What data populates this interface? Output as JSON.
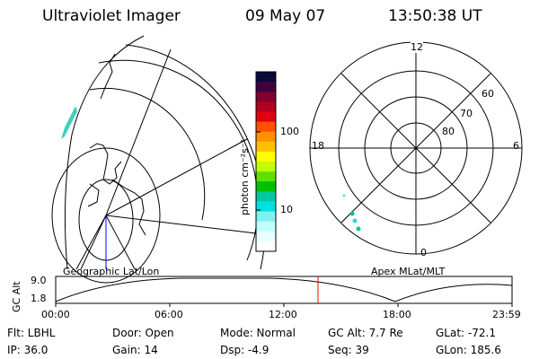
{
  "header": {
    "instrument": "Ultraviolet Imager",
    "date": "09 May 07",
    "time": "13:50:38 UT"
  },
  "colorbar": {
    "unit_label": "photon cm⁻²s⁻¹",
    "ticks": [
      "100",
      "10"
    ],
    "colors": [
      "#0a0a3a",
      "#400040",
      "#800030",
      "#b00020",
      "#e00010",
      "#ff5000",
      "#ff9000",
      "#ffc000",
      "#ffff00",
      "#c0ff00",
      "#60e000",
      "#00c000",
      "#00c8a0",
      "#00e0e0",
      "#80f0f0",
      "#c0ffff",
      "#e8ffff",
      "#ffffff"
    ]
  },
  "geo_panel": {
    "label": "Geographic Lat/Lon"
  },
  "polar_panel": {
    "label": "Apex MLat/MLT",
    "mlt_labels": {
      "top": "12",
      "left": "18",
      "right": "6",
      "bottom": "0"
    },
    "lat_labels": [
      "60",
      "70",
      "80"
    ]
  },
  "altitude_plot": {
    "ylabel": "GC Alt",
    "y_ticks": [
      "9.0",
      "1.8"
    ],
    "x_ticks": [
      "00:00",
      "06:00",
      "12:00",
      "18:00",
      "23:59"
    ],
    "marker_color": "#ff0000"
  },
  "footer": {
    "flt": "Flt: LBHL",
    "ip": "IP: 36.0",
    "door": "Door: Open",
    "gain": "Gain: 14",
    "mode": "Mode: Normal",
    "dsp": "Dsp:    -4.9",
    "gcalt": "GC Alt: 7.7 Re",
    "seq": "Seq: 39",
    "glat": "GLat: -72.1",
    "glon": "GLon: 185.6"
  }
}
